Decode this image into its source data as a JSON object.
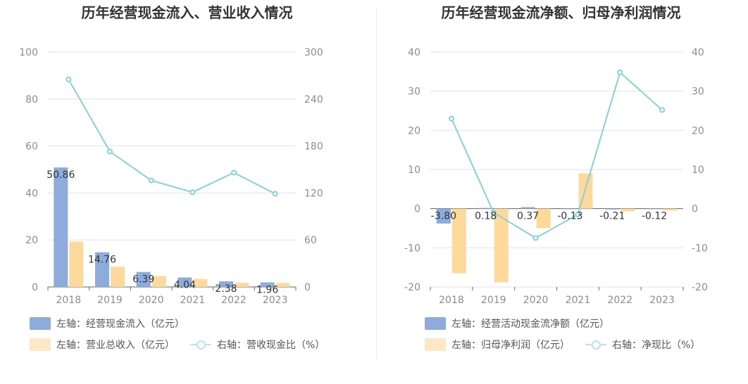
{
  "colors": {
    "bar_primary": "#8eacdb",
    "bar_secondary": "#fdd99b",
    "line": "#86d3d7",
    "grid": "#e3e3e3",
    "axis_text": "#8c8c8c"
  },
  "chart_data": [
    {
      "type": "bar",
      "title": "历年经营现金流入、营业收入情况",
      "categories": [
        "2018",
        "2019",
        "2020",
        "2021",
        "2022",
        "2023"
      ],
      "y_left": {
        "ylim": [
          0,
          100
        ],
        "ticks": [
          "0",
          "20",
          "40",
          "60",
          "80",
          "100"
        ]
      },
      "y_right": {
        "ylim": [
          0,
          300
        ],
        "ticks": [
          "0",
          "60",
          "120",
          "180",
          "240",
          "300"
        ]
      },
      "series": [
        {
          "name": "左轴：经营现金流入（亿元）",
          "type": "bar",
          "axis": "left",
          "values": [
            50.86,
            14.76,
            6.39,
            4.04,
            2.38,
            1.96
          ],
          "labels": [
            "50.86",
            "14.76",
            "6.39",
            "4.04",
            "2.38",
            "1.96"
          ]
        },
        {
          "name": "左轴：营业总收入（亿元）",
          "type": "bar",
          "axis": "left",
          "values": [
            19.3,
            8.6,
            4.6,
            3.4,
            1.8,
            1.7
          ]
        },
        {
          "name": "右轴：营收现金比（%）",
          "type": "line",
          "axis": "right",
          "values": [
            265,
            173,
            136,
            121,
            146,
            119
          ]
        }
      ],
      "grid": true,
      "legend_position": "bottom"
    },
    {
      "type": "bar",
      "title": "历年经营现金流净额、归母净利润情况",
      "categories": [
        "2018",
        "2019",
        "2020",
        "2021",
        "2022",
        "2023"
      ],
      "y_left": {
        "ylim": [
          -20,
          40
        ],
        "ticks": [
          "-20",
          "-10",
          "0",
          "10",
          "20",
          "30",
          "40"
        ]
      },
      "y_right": {
        "ylim": [
          -20,
          40
        ],
        "ticks": [
          "-20",
          "-10",
          "0",
          "10",
          "20",
          "30",
          "40"
        ]
      },
      "series": [
        {
          "name": "左轴：经营活动现金流净额（亿元）",
          "type": "bar",
          "axis": "left",
          "values": [
            -3.8,
            0.18,
            0.37,
            -0.13,
            -0.21,
            -0.12
          ],
          "labels": [
            "-3.80",
            "0.18",
            "0.37",
            "-0.13",
            "-0.21",
            "-0.12"
          ]
        },
        {
          "name": "左轴：归母净利润（亿元）",
          "type": "bar",
          "axis": "left",
          "values": [
            -16.5,
            -18.8,
            -5.0,
            9.0,
            -0.7,
            -0.5
          ]
        },
        {
          "name": "右轴：净现比（%）",
          "type": "line",
          "axis": "right",
          "values": [
            23,
            -1,
            -7.5,
            -1.5,
            34.8,
            25.2
          ]
        }
      ],
      "grid": true,
      "legend_position": "bottom"
    }
  ]
}
